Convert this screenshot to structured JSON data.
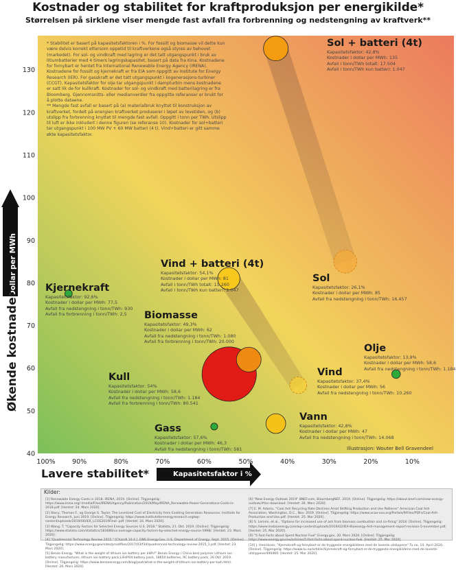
{
  "header": {
    "title": "Kostnader og stabilitet for kraftproduksjon per energikilde*",
    "subtitle": "Størrelsen på sirklene viser mengde fast avfall fra forbrenning og nedstengning av kraftverk**"
  },
  "notes": [
    "* Stabilitet er basert på kapasitetsfaktoren i %. For fossilt og biomasse vil dette kun være delvis korrekt ettersom oppetid til kraftverkene også styres av behovet (markedet). For sol- og vindkraft med lagring er det tatt utgangspunkt i bruk av litiumbatterier med 4 timers lagringskapasitet, basert på data fra Kina. Kostnadene for fornybart er hentet fra International Renewable Energy Agency (IRENA). Kostnadene for fossilt og kjernekraft er fra EIA som oppgitt av Institute for Energy Research (IER). For gasskraft er det tatt utgangspunkt i kogenerasjons-turbiner (CCGT). Kapasitetsfaktor for olje tar utgangspunkt i dampturbin mens kostnadene er satt lik de for kullkraft. Kostnader for sol- og vindkraft med batterilagring er fra Bloomberg. Gjennomsnitts- eller medianverdier fra oppgitte referanser er brukt for å plotte dataene.",
    "** Mengde fast avfall er basert på (a) materialbruk knyttet til konstruksjon av kraftverket, fordelt på energien kraftverket produserer i løpet av levetiden, og (b) utslipp fra forbrenning knyttet til mengde fast avfall. Oppgitt i tonn per TWh. Utslipp til luft er ikke inkludert i denne figuren (se referanse 10). Kostnader for sol+batteri tar utgangspunkt i 100 MW PV + 60 MW batteri (4 t). Vind+batteri er gitt samme økte kapasitetsfaktor."
  ],
  "axes": {
    "y_outer": "Økende kostnader",
    "y_inner": "Dollar per MWh",
    "x_outer": "Lavere stabilitet*",
    "x_inner": "Kapasitetsfaktor i %"
  },
  "credit": "Illustrasjon: Wouter Bell Gravendeel",
  "references": {
    "title": "Kilder:",
    "col1": [
      "[1] Renewable Energy Costs in 2018. IRENA, 2019. [Online]. Tilgjengelig: https://www.irena.org/-/media/Files/IRENA/Agency/Publication/2019/May/IRENA_Renewable-Power-Generations-Costs-in-2018.pdf. [Hentet: 24. Mars 2020].",
      "[2] Stacy, Thomas F., og George S. Taylor. The Levelized Cost of Electricity from Existing Generation Resources. Institute for Energy Research, Juni 2019. [Online]. Tilgjengelig: https://www.instituteforenergyresearch.org/wp-content/uploads/2019/06/IER_LCOE2019Final-.pdf. [Hentet: 24. Mars 2020].",
      "[3] Wang, T. \"Capacity Factors for Selected Energy Sources U.S. 2018.\" Statista, 21. Okt. 2019. [Online]. Tilgjengelig: https://www.statista.com/statistics/183680/us-average-capacity-factors-by-selected-energy-source-1998/. [Hentet: 23. Mars 2020].",
      "[4] \"Quadrennial Technology Review 2015.\" [Chandl 10.4.]. DNS Energy.Gov, U.S. Department of Energy, Sept. 2015. [Online]. Tilgjengelig: https://www.energy.gov/sites/prod/files/2017/03/f34/quadrennial-technology-review-2015_1.pdf. [Hentet: 23. Mars 2020].",
      "[5] Benzo Energy. \"What is the weight of lithium ion battery per kWh?\" Benzo Energy / China best polymer Lithium ion battery manufacturer, lithium ion battery pack,LiFePO4 battery pack, 18650 batteries, RC battery pack, 26 Okt. 2019. [Online]. Tilgjengelig: https://www.benzoenergy.com/blog/post/what-is-the-weight-of-lithium-ion-battery-per-kwh.html. [Hentet: 26. Mars 2020]."
    ],
    "col2": [
      "[6] \"New Energy Outlook 2019\" BNEF.com, BloombergNEF, 2019. [Online]. Tilgjengelig: https://about.bnef.com/new-energy-outlook/#toc-download. [Hentet: 26. Mars 2020].",
      "[7] E. M. Adams. \"Coal Ash Recycling Rate Declines Amid Shifting Production and Use Patterns\" American Coal Ash Association, Washington, D.C., Nov. 2019. [Online]. Tilgjengelig: https://www.acaa-usa.org/Portals/9/Files/PDFs/Coal-Ash-Production-and-Use.pdf. [Hentet: 25. Mar 2020].",
      "[8] S. Lemmi, et al., \"Options for increased use of ash from biomass combustion and co-firing\" 2018. [Online]. Tilgjengelig: https://www.ieabioenergy.com/wp-content/uploads/2019/02/IEA-Bioenergy-Ash-management-report-revision-5-november.pdf. [Hentet: 25. Mar 2020].",
      "[9] \"5 Fast Facts about Spent Nuclear Fuel\" Energy.gov, 30. Mars 2020. [Online]. Tilgjengelig: https://www.energy.gov/ne/articles/5-fast-facts-about-spent-nuclear-fuel. [Hentet: 25. Mar 2020].",
      "[10] J. Henriksen, \"Kjernekraft og fornybart er de tryggeste energikildene med de laveste utslippene\" Tu.no, 14. April 2020. [Online]. Tilgjengelig: https://www.tu.no/artikler/kjernekraft-og-fornybart-er-de-tryggeste-energikildene-med-de-laveste-utslippene/490460. [Hentet: 25. Mar 2020]."
    ]
  },
  "chart_data": {
    "type": "scatter",
    "title": "Kostnader og stabilitet for kraftproduksjon per energikilde*",
    "xlabel": "Kapasitetsfaktor i %",
    "ylabel": "Dollar per MWh",
    "xlim": [
      100,
      0
    ],
    "ylim": [
      40,
      138
    ],
    "x_ticks": [
      100,
      90,
      80,
      70,
      60,
      50,
      40,
      30,
      20,
      10
    ],
    "x_tick_labels": [
      "100%",
      "90%",
      "80%",
      "70%",
      "60%",
      "50%",
      "40%",
      "30%",
      "20%",
      "10%"
    ],
    "y_ticks": [
      40,
      50,
      60,
      70,
      80,
      90,
      100,
      110,
      120,
      130
    ],
    "size_variable": "Avfall fra nedstengning og forbrenning (tonn/TWh)",
    "points": [
      {
        "name": "Sol + batteri (4t)",
        "x": 42.8,
        "y": 135,
        "color": "#f39c12",
        "radius_factor": 1.0,
        "dashed": false,
        "lines": [
          "Kapasitetsfaktor: 42,8%",
          "Kostnader i dollar per MWh: 135",
          "Avfall i tonn/TWh totalt: 17.504",
          "Avfall i tonn/TWh kun batteri: 1.047"
        ]
      },
      {
        "name": "Sol",
        "x": 26.1,
        "y": 85,
        "color": "#f5a93a",
        "radius_factor": 0.93,
        "dashed": true,
        "lines": [
          "Kapasitetsfaktor: 26,1%",
          "Kostnader i dollar per MWh: 85",
          "Avfall fra nedstengning i tonn/TWh: 16.457"
        ]
      },
      {
        "name": "Vind + batteri (4t)",
        "x": 54.1,
        "y": 81,
        "color": "#f7c81b",
        "radius_factor": 0.9,
        "dashed": false,
        "lines": [
          "Kapasitetsfaktor: 54,1%",
          "Kostnader i dollar per MWh: 81",
          "Avfall i tonn/TWh totalt: 11.260",
          "Avfall i tonn/TWh kun batteri: 1.047"
        ]
      },
      {
        "name": "Kjernekraft",
        "x": 92.6,
        "y": 77.5,
        "color": "#2eaa3a",
        "radius_factor": 0.3,
        "dashed": false,
        "lines": [
          "Kapasitetsfaktor: 92,6%",
          "Kostnader i dollar per MWh: 77,5",
          "Avfall fra nedstengning i tonn/TWh: 930",
          "Avfall fra forbrenning i tonn/TWh: 2,5"
        ]
      },
      {
        "name": "Biomasse",
        "x": 49.3,
        "y": 62,
        "color": "#ef8a12",
        "radius_factor": 1.0,
        "dashed": false,
        "lines": [
          "Kapasitetsfaktor: 49,3%",
          "Kostnader i dollar per MWh: 62",
          "Avfall fra nedstengning i tonn/TWh: 1.080",
          "Avfall fra forbrenning i tonn/TWh: 20.000"
        ]
      },
      {
        "name": "Kull",
        "x": 54,
        "y": 58.6,
        "color": "#e11b16",
        "radius_factor": 2.2,
        "dashed": false,
        "lines": [
          "Kapasitetsfaktor: 54%",
          "Kostnader i dollar per MWh: 58,6",
          "Avfall fra nedstengning i tonn/TWh: 1.184",
          "Avfall fra forbrenning i tonn/TWh: 80.541"
        ]
      },
      {
        "name": "Olje",
        "x": 13.9,
        "y": 58.6,
        "color": "#2eaa3a",
        "radius_factor": 0.35,
        "dashed": false,
        "lines": [
          "Kapasitetsfaktor: 13,9%",
          "Kostnader i dollar per MWh: 58,6",
          "Avfall fra nedstengning i tonn/TWh: 1.184"
        ]
      },
      {
        "name": "Vind",
        "x": 37.4,
        "y": 56,
        "color": "#f7cf35",
        "radius_factor": 0.68,
        "dashed": true,
        "lines": [
          "Kapasitetsfaktor: 37,4%",
          "Kostnader i dollar per MWh: 56",
          "Avfall fra nedstengning i tonn/TWh: 10.260"
        ]
      },
      {
        "name": "Vann",
        "x": 42.8,
        "y": 47,
        "color": "#f5c219",
        "radius_factor": 0.8,
        "dashed": false,
        "lines": [
          "Kapasitetsfaktor: 42,8%",
          "Kostnader i dollar per MWh: 47",
          "Avfall fra nedstengning i tonn/TWh: 14.068"
        ]
      },
      {
        "name": "Gass",
        "x": 57.6,
        "y": 46.3,
        "color": "#2eaa3a",
        "radius_factor": 0.28,
        "dashed": false,
        "lines": [
          "Kapasitetsfaktor: 57,6%",
          "Kostnader i dollar per MWh: 46,3",
          "Avfall fra nedstengning i tonn/TWh: 581"
        ]
      }
    ]
  }
}
